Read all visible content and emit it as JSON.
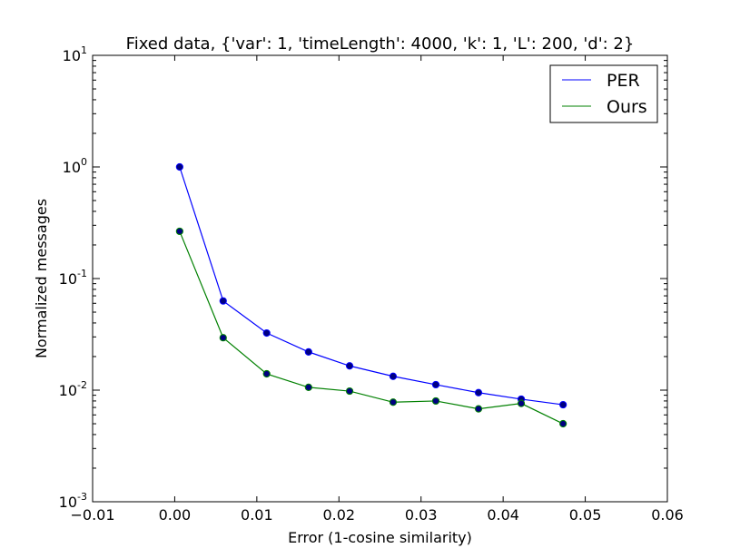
{
  "chart_data": {
    "type": "line",
    "title": "Fixed data, {'var': 1, 'timeLength': 4000, 'k': 1, 'L': 200, 'd': 2}",
    "xlabel": "Error (1-cosine similarity)",
    "ylabel": "Normalized messages",
    "xlim": [
      -0.01,
      0.06
    ],
    "ylim": [
      0.001,
      10
    ],
    "yscale": "log",
    "xticks": [
      "−0.01",
      "0.00",
      "0.01",
      "0.02",
      "0.03",
      "0.04",
      "0.05",
      "0.06"
    ],
    "xtick_values": [
      -0.01,
      0.0,
      0.01,
      0.02,
      0.03,
      0.04,
      0.05,
      0.06
    ],
    "yticks": [
      {
        "base": "10",
        "exp": "-3",
        "value": 0.001
      },
      {
        "base": "10",
        "exp": "-2",
        "value": 0.01
      },
      {
        "base": "10",
        "exp": "-1",
        "value": 0.1
      },
      {
        "base": "10",
        "exp": "0",
        "value": 1
      },
      {
        "base": "10",
        "exp": "1",
        "value": 10
      }
    ],
    "grid": false,
    "legend_position": "top-right",
    "series": [
      {
        "name": "PER",
        "color": "#0000ff",
        "marker_color": "#000080",
        "x": [
          0.0006,
          0.0059,
          0.0112,
          0.0163,
          0.0213,
          0.0266,
          0.0318,
          0.037,
          0.0422,
          0.0473
        ],
        "y": [
          1.0,
          0.063,
          0.0325,
          0.022,
          0.0165,
          0.0133,
          0.0112,
          0.0095,
          0.0083,
          0.0074
        ]
      },
      {
        "name": "Ours",
        "color": "#008000",
        "marker_color": "#000080",
        "x": [
          0.0006,
          0.0059,
          0.0112,
          0.0163,
          0.0213,
          0.0266,
          0.0318,
          0.037,
          0.0422,
          0.0473
        ],
        "y": [
          0.265,
          0.0295,
          0.014,
          0.0106,
          0.0098,
          0.0078,
          0.008,
          0.0068,
          0.0076,
          0.005
        ]
      }
    ]
  }
}
